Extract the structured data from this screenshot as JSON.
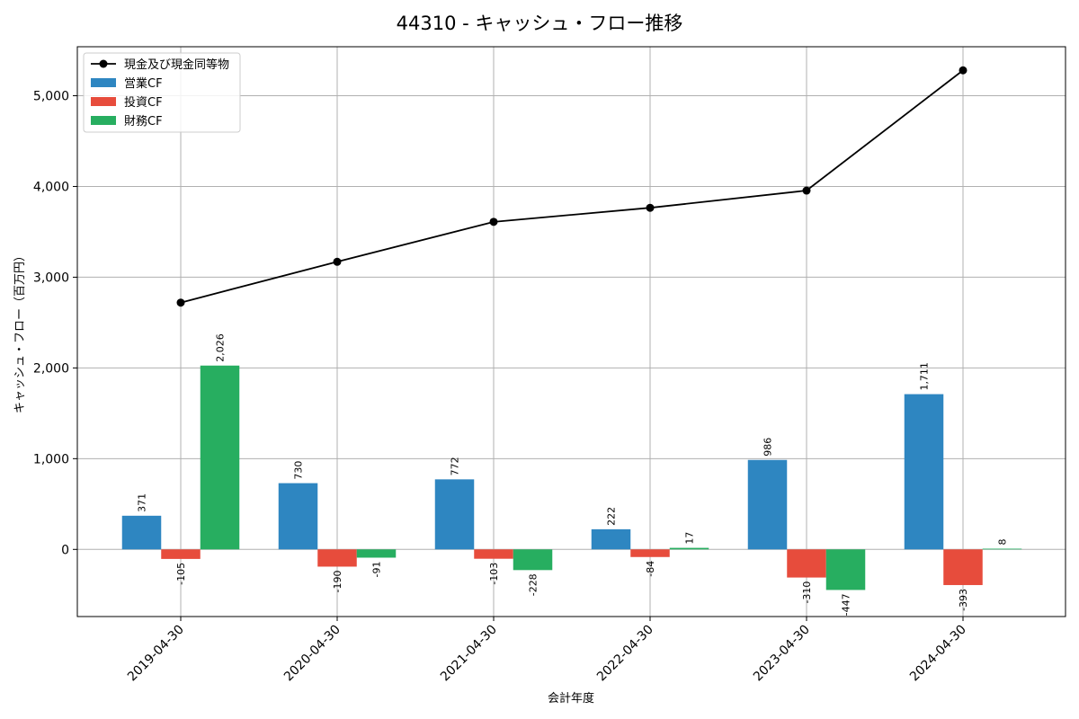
{
  "chart_data": {
    "type": "bar",
    "title": "44310 - キャッシュ・フロー推移",
    "xlabel": "会計年度",
    "ylabel": "キャッシュ・フロー（百万円）",
    "categories": [
      "2019-04-30",
      "2020-04-30",
      "2021-04-30",
      "2022-04-30",
      "2023-04-30",
      "2024-04-30"
    ],
    "ylim": [
      -740,
      5540
    ],
    "yticks": [
      0,
      1000,
      2000,
      3000,
      4000,
      5000
    ],
    "ytick_labels": [
      "0",
      "1,000",
      "2,000",
      "3,000",
      "4,000",
      "5,000"
    ],
    "grid": true,
    "legend_position": "top-left",
    "series": [
      {
        "name": "営業CF",
        "kind": "bar",
        "color": "#2e86c1",
        "values": [
          371,
          730,
          772,
          222,
          986,
          1711
        ],
        "labels": [
          "371",
          "730",
          "772",
          "222",
          "986",
          "1,711"
        ]
      },
      {
        "name": "投資CF",
        "kind": "bar",
        "color": "#e74c3c",
        "values": [
          -105,
          -190,
          -103,
          -84,
          -310,
          -393
        ],
        "labels": [
          "-105",
          "-190",
          "-103",
          "-84",
          "-310",
          "-393"
        ]
      },
      {
        "name": "財務CF",
        "kind": "bar",
        "color": "#27ae60",
        "values": [
          2026,
          -91,
          -228,
          17,
          -447,
          8
        ],
        "labels": [
          "2,026",
          "-91",
          "-228",
          "17",
          "-447",
          "8"
        ]
      },
      {
        "name": "現金及び現金同等物",
        "kind": "line",
        "color": "#000000",
        "values": [
          2720,
          3170,
          3610,
          3765,
          3955,
          5280
        ]
      }
    ]
  }
}
